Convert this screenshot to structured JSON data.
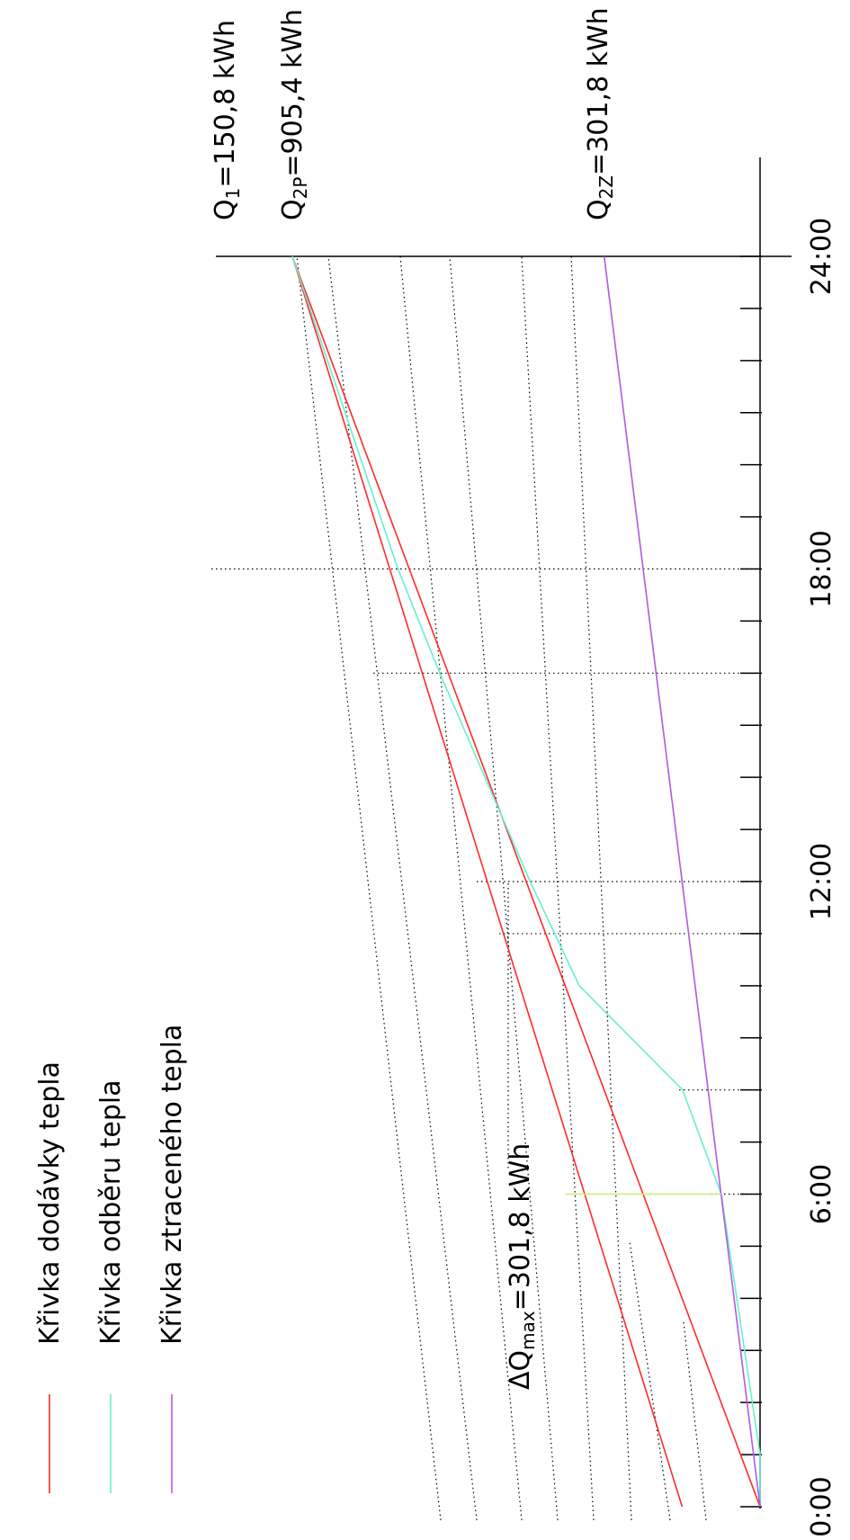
{
  "chart_data": {
    "type": "line",
    "title": "",
    "xlabel": "",
    "ylabel": "",
    "xlim": [
      0,
      24
    ],
    "ylim": [
      0,
      905.4
    ],
    "x_tick_labels": [
      "0:00",
      "6:00",
      "12:00",
      "18:00",
      "24:00"
    ],
    "legend": {
      "placement": "left",
      "entries": [
        {
          "label": "Křivka dodávky tepla",
          "color": "#ff2a2a"
        },
        {
          "label": "Křivka odběru tepla",
          "color": "#66f0d0"
        },
        {
          "label": "Křivka ztraceného tepla",
          "color": "#b05ae6"
        }
      ]
    },
    "series": [
      {
        "name": "Křivka dodávky tepla",
        "color": "#ff2a2a",
        "x": [
          0,
          24
        ],
        "y": [
          150.8,
          905.4
        ]
      },
      {
        "name": "Křivka dodávky tepla",
        "color": "#ff2a2a",
        "x": [
          0,
          24
        ],
        "y": [
          0,
          905.4
        ]
      },
      {
        "name": "Křivka odběru tepla",
        "color": "#66f0d0",
        "x": [
          0,
          1,
          6,
          8,
          10,
          12,
          16,
          18,
          24
        ],
        "y": [
          0,
          0,
          75,
          150,
          350,
          445,
          620,
          701,
          905.4
        ]
      },
      {
        "name": "Křivka ztraceného tepla",
        "color": "#b05ae6",
        "x": [
          0,
          24
        ],
        "y": [
          0,
          301.8
        ]
      }
    ],
    "annotations": {
      "q1": {
        "main": "Q",
        "sub": "1",
        "rest": "=150,8 kWh"
      },
      "q2p": {
        "main": "Q",
        "sub": "2P",
        "rest": "=905,4 kWh"
      },
      "q2z": {
        "main": "Q",
        "sub": "2Z",
        "rest": "=301,8 kWh"
      },
      "dq": {
        "main": "ΔQ",
        "sub": "max",
        "rest": "=301,8 kWh"
      }
    },
    "delta_q": {
      "x": 6,
      "y_from": 75,
      "y_to": 376.8,
      "color": "#c8f070"
    }
  }
}
